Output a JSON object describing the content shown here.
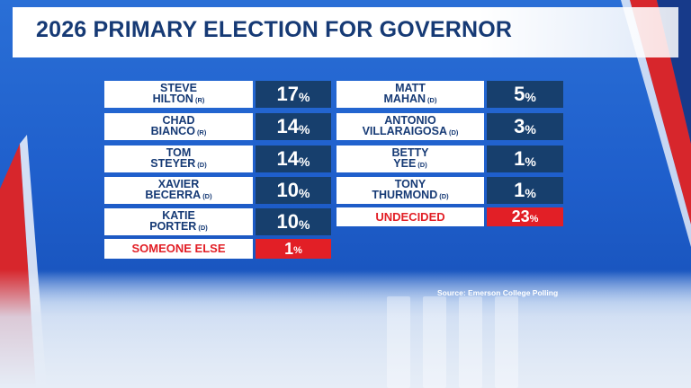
{
  "title": "2026 PRIMARY ELECTION FOR GOVERNOR",
  "source": "Source: Emerson College Polling",
  "colors": {
    "name_bg": "#ffffff",
    "pct_bg": "#173f6d",
    "highlight": "#e21f26",
    "title": "#163a75"
  },
  "left_rows": [
    {
      "first": "STEVE",
      "last": "HILTON",
      "party": "(R)",
      "pct": "17",
      "unit": "%"
    },
    {
      "first": "CHAD",
      "last": "BIANCO",
      "party": "(R)",
      "pct": "14",
      "unit": "%"
    },
    {
      "first": "TOM",
      "last": "STEYER",
      "party": "(D)",
      "pct": "14",
      "unit": "%"
    },
    {
      "first": "XAVIER",
      "last": "BECERRA",
      "party": "(D)",
      "pct": "10",
      "unit": "%"
    },
    {
      "first": "KATIE",
      "last": "PORTER",
      "party": "(D)",
      "pct": "10",
      "unit": "%"
    }
  ],
  "left_other": {
    "label": "SOMEONE ELSE",
    "pct": "1",
    "unit": "%"
  },
  "right_rows": [
    {
      "first": "MATT",
      "last": "MAHAN",
      "party": "(D)",
      "pct": "5",
      "unit": "%"
    },
    {
      "first": "ANTONIO",
      "last": "VILLARAIGOSA",
      "party": "(D)",
      "pct": "3",
      "unit": "%"
    },
    {
      "first": "BETTY",
      "last": "YEE",
      "party": "(D)",
      "pct": "1",
      "unit": "%"
    },
    {
      "first": "TONY",
      "last": "THURMOND",
      "party": "(D)",
      "pct": "1",
      "unit": "%"
    }
  ],
  "right_other": {
    "label": "UNDECIDED",
    "pct": "23",
    "unit": "%"
  }
}
